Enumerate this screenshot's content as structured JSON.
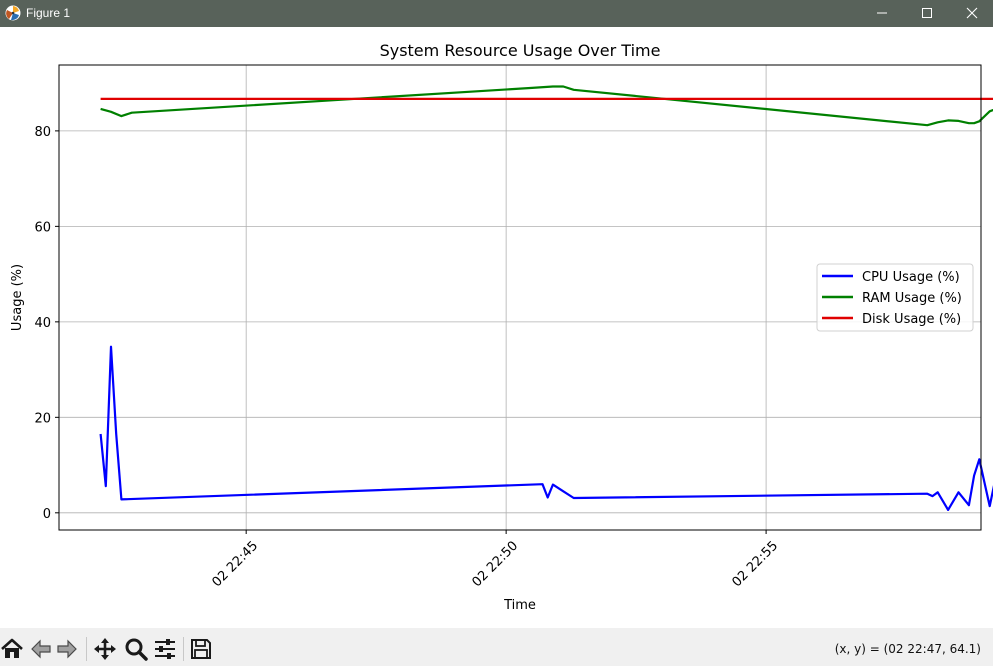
{
  "window": {
    "title": "Figure 1",
    "icons": {
      "app": "matplotlib-icon",
      "minimize": "minimize-icon",
      "maximize": "maximize-icon",
      "close": "close-icon"
    }
  },
  "toolbar": {
    "buttons": [
      "home-icon",
      "back-icon",
      "forward-icon",
      "pan-icon",
      "zoom-icon",
      "configure-subplots-icon",
      "save-icon"
    ],
    "coords": "(x, y) = (02 22:47, 64.1)"
  },
  "chart_data": {
    "type": "line",
    "title": "System Resource Usage Over Time",
    "xlabel": "Time",
    "ylabel": "Usage (%)",
    "xlim": [
      "02 22:41:24",
      "02 22:59:08"
    ],
    "ylim": [
      -3.6,
      93.8
    ],
    "xticks": [
      {
        "t": "02 22:45:00",
        "label": "02 22:45"
      },
      {
        "t": "02 22:50:00",
        "label": "02 22:50"
      },
      {
        "t": "02 22:55:00",
        "label": "02 22:55"
      }
    ],
    "yticks": [
      0,
      20,
      40,
      60,
      80
    ],
    "grid": true,
    "legend_position": "center-right",
    "series": [
      {
        "name": "CPU Usage (%)",
        "color": "#0000ff",
        "x": [
          "02 22:42:12",
          "02 22:42:18",
          "02 22:42:24",
          "02 22:42:30",
          "02 22:42:36",
          "02 22:50:42",
          "02 22:50:48",
          "02 22:50:54",
          "02 22:51:06",
          "02 22:51:18",
          "02 22:58:06",
          "02 22:58:12",
          "02 22:58:18",
          "02 22:58:30",
          "02 22:58:42",
          "02 22:58:54",
          "02 22:59:00",
          "02 22:59:06",
          "02 22:59:18",
          "02 22:59:30"
        ],
        "y": [
          16.5,
          5.6,
          34.8,
          16.5,
          2.8,
          6.0,
          3.2,
          5.9,
          4.5,
          3.1,
          4.0,
          3.5,
          4.3,
          0.6,
          4.3,
          1.6,
          7.8,
          11.2,
          1.4,
          11.8
        ]
      },
      {
        "name": "RAM Usage (%)",
        "color": "#008000",
        "x": [
          "02 22:42:12",
          "02 22:42:24",
          "02 22:42:36",
          "02 22:42:48",
          "02 22:50:30",
          "02 22:50:54",
          "02 22:51:06",
          "02 22:51:18",
          "02 22:58:06",
          "02 22:58:18",
          "02 22:58:30",
          "02 22:58:42",
          "02 22:58:54",
          "02 22:59:00",
          "02 22:59:06",
          "02 22:59:18",
          "02 22:59:30"
        ],
        "y": [
          84.6,
          84.0,
          83.1,
          83.8,
          89.0,
          89.3,
          89.3,
          88.6,
          81.2,
          81.8,
          82.2,
          82.1,
          81.6,
          81.6,
          82.0,
          84.1,
          84.9
        ]
      },
      {
        "name": "Disk Usage (%)",
        "color": "#e00000",
        "x": [
          "02 22:42:12",
          "02 22:59:30"
        ],
        "y": [
          86.7,
          86.7
        ]
      }
    ]
  }
}
